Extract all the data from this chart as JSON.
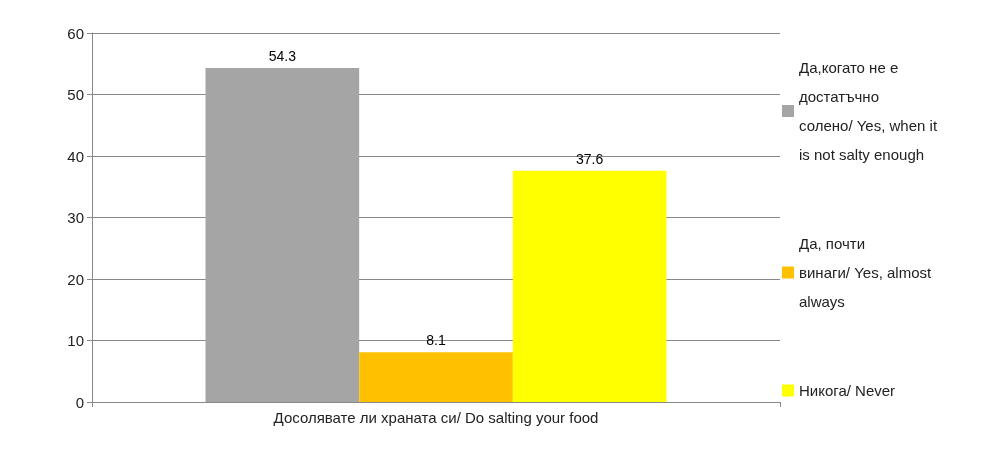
{
  "chart_data": {
    "type": "bar",
    "categories": [
      "Досолявате ли храната си/ Do salting your food"
    ],
    "series": [
      {
        "name": "Да,когато не е достатъчно солено/ Yes, when it is not salty enough",
        "color": "#a5a5a5",
        "values": [
          54.3
        ]
      },
      {
        "name": "Да, почти винаги/ Yes, almost always",
        "color": "#ffc000",
        "values": [
          8.1
        ]
      },
      {
        "name": "Никога/ Never",
        "color": "#ffff00",
        "values": [
          37.6
        ]
      }
    ],
    "ylim": [
      0,
      60
    ],
    "yticks": [
      0,
      10,
      20,
      30,
      40,
      50,
      60
    ],
    "grid": "y",
    "legend": "right",
    "data_labels": true
  }
}
